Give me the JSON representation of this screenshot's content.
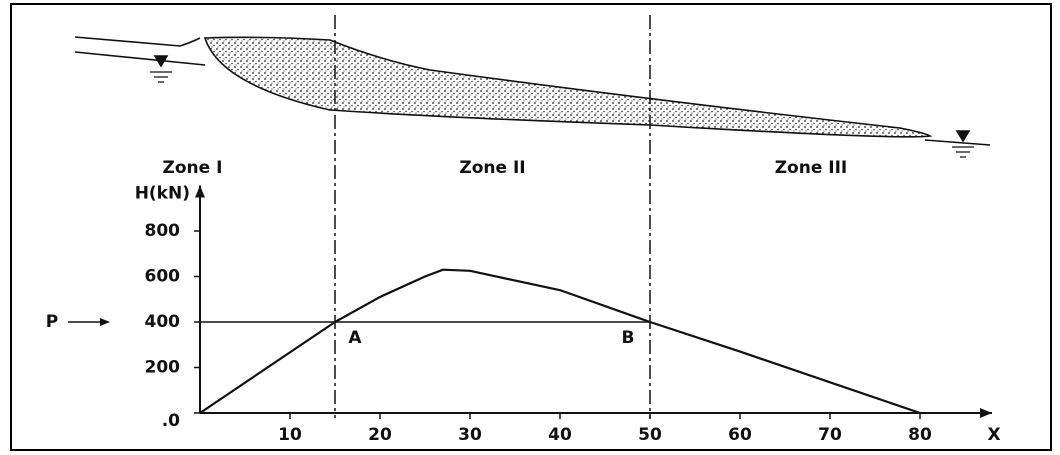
{
  "chart_data": {
    "type": "line",
    "y_label": "H(kN)",
    "x_label": "X",
    "x": [
      0,
      15,
      20,
      25,
      27,
      30,
      40,
      50,
      60,
      70,
      80
    ],
    "values": [
      0,
      400,
      510,
      600,
      630,
      625,
      540,
      400,
      270,
      135,
      0
    ],
    "color": "#111111",
    "xlim": [
      0,
      88
    ],
    "ylim": [
      0,
      1000
    ],
    "xticks": [
      10,
      20,
      30,
      40,
      50,
      60,
      70,
      80
    ],
    "yticks": [
      {
        "value": 0,
        "label": ".0"
      },
      200,
      400,
      600,
      800
    ],
    "zones": [
      "Zone I",
      "Zone II",
      "Zone III"
    ],
    "zone_boundaries": [
      15,
      50
    ],
    "reference_line": {
      "value": 400,
      "label": "P"
    },
    "points": [
      {
        "label": "A",
        "x": 15
      },
      {
        "label": "B",
        "x": 50
      }
    ]
  }
}
